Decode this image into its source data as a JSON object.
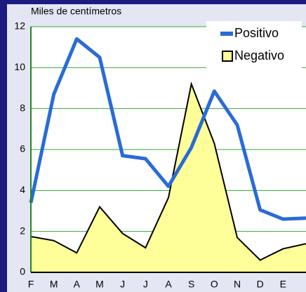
{
  "chart_data": {
    "type": "line",
    "y_label": "Miles de centímetros",
    "categories": [
      "F",
      "M",
      "A",
      "M",
      "J",
      "J",
      "A",
      "S",
      "O",
      "N",
      "D",
      "E",
      null
    ],
    "series": [
      {
        "name": "Positivo",
        "color": "#2a6bd6",
        "style": "line",
        "values": [
          3.4,
          8.7,
          11.4,
          10.5,
          5.7,
          5.55,
          4.2,
          6.1,
          8.85,
          7.2,
          3.05,
          2.6,
          2.65
        ]
      },
      {
        "name": "Negativo",
        "color": "#ffff99",
        "style": "area",
        "values": [
          1.75,
          1.55,
          0.95,
          3.2,
          1.9,
          1.2,
          3.65,
          9.2,
          6.3,
          1.7,
          0.6,
          1.15,
          1.4
        ]
      }
    ],
    "ylim": [
      0,
      12
    ],
    "yticks": [
      0,
      2,
      4,
      6,
      8,
      10,
      12
    ],
    "grid": true,
    "grid_color": "#33aa33",
    "legend": "top-right"
  }
}
